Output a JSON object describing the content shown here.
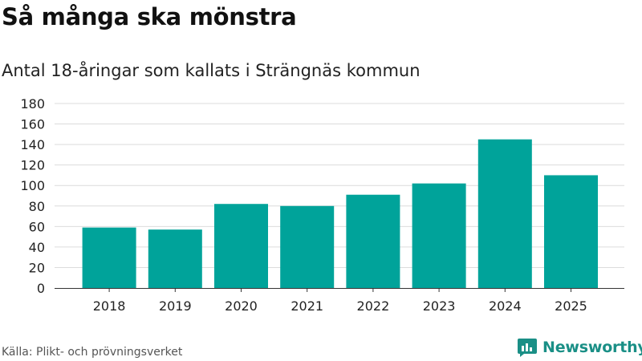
{
  "header": {
    "title": "Så många ska mönstra",
    "subtitle": "Antal 18-åringar som kallats i Strängnäs kommun"
  },
  "footer": {
    "source": "Källa: Plikt- och prövningsverket",
    "brand": "Newsworthy"
  },
  "colors": {
    "bar": "#00a39a",
    "grid": "#dcdcdc",
    "axis": "#333333",
    "brand": "#1a8f86"
  },
  "icons": {
    "brand_logo": "newsworthy-logo-icon"
  },
  "chart_data": {
    "type": "bar",
    "title": "Så många ska mönstra",
    "subtitle": "Antal 18-åringar som kallats i Strängnäs kommun",
    "xlabel": "",
    "ylabel": "",
    "categories": [
      "2018",
      "2019",
      "2020",
      "2021",
      "2022",
      "2023",
      "2024",
      "2025"
    ],
    "values": [
      59,
      57,
      82,
      80,
      91,
      102,
      145,
      110
    ],
    "ylim": [
      0,
      180
    ],
    "yticks": [
      0,
      20,
      40,
      60,
      80,
      100,
      120,
      140,
      160,
      180
    ],
    "grid": true,
    "legend": "none"
  }
}
